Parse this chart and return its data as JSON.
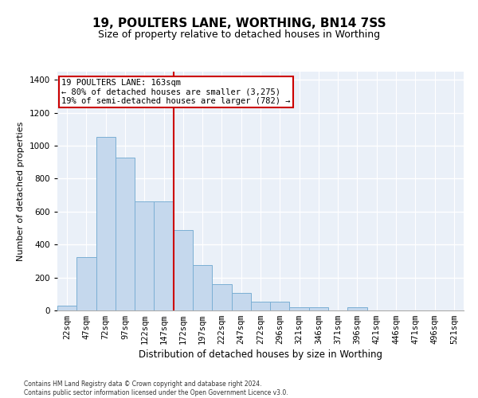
{
  "title": "19, POULTERS LANE, WORTHING, BN14 7SS",
  "subtitle": "Size of property relative to detached houses in Worthing",
  "xlabel": "Distribution of detached houses by size in Worthing",
  "ylabel": "Number of detached properties",
  "categories": [
    "22sqm",
    "47sqm",
    "72sqm",
    "97sqm",
    "122sqm",
    "147sqm",
    "172sqm",
    "197sqm",
    "222sqm",
    "247sqm",
    "272sqm",
    "296sqm",
    "321sqm",
    "346sqm",
    "371sqm",
    "396sqm",
    "421sqm",
    "446sqm",
    "471sqm",
    "496sqm",
    "521sqm"
  ],
  "values": [
    30,
    325,
    1055,
    930,
    660,
    660,
    490,
    275,
    160,
    105,
    55,
    55,
    20,
    20,
    0,
    20,
    0,
    0,
    0,
    0,
    0
  ],
  "bar_color": "#c5d8ed",
  "bar_edge_color": "#7bafd4",
  "vline_color": "#cc0000",
  "vline_x_index": 6,
  "annotation_text": "19 POULTERS LANE: 163sqm\n← 80% of detached houses are smaller (3,275)\n19% of semi-detached houses are larger (782) →",
  "annotation_box_color": "#cc0000",
  "ylim": [
    0,
    1450
  ],
  "yticks": [
    0,
    200,
    400,
    600,
    800,
    1000,
    1200,
    1400
  ],
  "background_color": "#eaf0f8",
  "grid_color": "#ffffff",
  "footer": "Contains HM Land Registry data © Crown copyright and database right 2024.\nContains public sector information licensed under the Open Government Licence v3.0.",
  "title_fontsize": 11,
  "subtitle_fontsize": 9,
  "xlabel_fontsize": 8.5,
  "ylabel_fontsize": 8,
  "tick_fontsize": 7.5,
  "annotation_fontsize": 7.5,
  "footer_fontsize": 5.5
}
